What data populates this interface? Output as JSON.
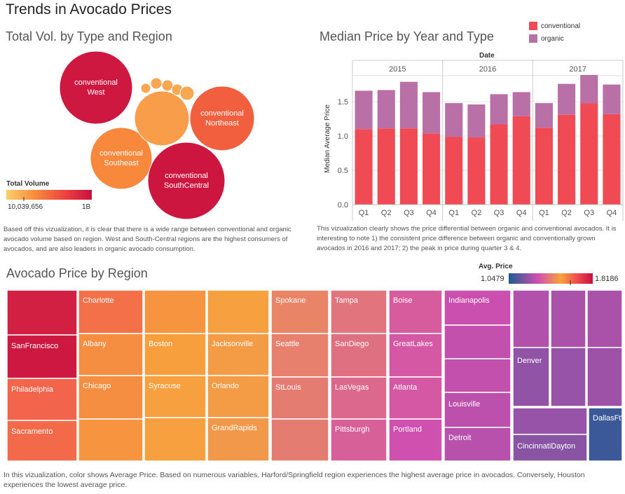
{
  "page": {
    "title": "Trends in Avocado Prices"
  },
  "bubbles": {
    "title": "Total Vol. by Type and Region",
    "legend_title": "Total Volume",
    "legend_min": "10,039,656",
    "legend_max": "1B",
    "colors": [
      "#fbd06a",
      "#f7883c",
      "#ec4040",
      "#c8103f"
    ],
    "note": "Based off this vizualization, it is clear that there is a wide range between conventional and organic avocado volume based on region. West and South-Central regions are the highest consumers of avocados, and are also leaders in organic avocado consumption."
  },
  "bars": {
    "title": "Median Price by Year and Type",
    "date_label": "Date",
    "y_axis_label": "Median Average Price",
    "legend": [
      {
        "name": "conventional",
        "color": "#f04a55"
      },
      {
        "name": "organic",
        "color": "#b870a6"
      }
    ],
    "note": "This vizualization clearly shows the price differential between organic and conventional avocados. It is interesting to note 1) the consistent price difference between organic and conventionally grown avocados in 2016 and 2017; 2) the peak in price during quarter 3 & 4."
  },
  "chart_data": [
    {
      "type": "scatter",
      "title": "Total Vol. by Type and Region",
      "points": [
        {
          "label": "conventional West",
          "color_level": 0.95
        },
        {
          "label": "conventional Northeast",
          "color_level": 0.55
        },
        {
          "label": "conventional Southeast",
          "color_level": 0.35
        },
        {
          "label": "conventional SouthCentral",
          "color_level": 0.96
        },
        {
          "label": "",
          "color_level": 0.25
        },
        {
          "label": "",
          "color_level": 0.2
        },
        {
          "label": "",
          "color_level": 0.2
        },
        {
          "label": "",
          "color_level": 0.2
        },
        {
          "label": "",
          "color_level": 0.2
        },
        {
          "label": "",
          "color_level": 0.2
        },
        {
          "label": "",
          "color_level": 0.2
        }
      ]
    },
    {
      "type": "bar",
      "title": "Median Price by Year and Type",
      "years": [
        "2015",
        "2016",
        "2017"
      ],
      "categories": [
        "Q1",
        "Q2",
        "Q3",
        "Q4",
        "Q1",
        "Q2",
        "Q3",
        "Q4",
        "Q1",
        "Q2",
        "Q3",
        "Q4"
      ],
      "ylabel": "Median Average Price",
      "ylim": [
        0,
        1.9
      ],
      "yticks": [
        "0.0",
        "0.5",
        "1.0",
        "1.5"
      ],
      "series": [
        {
          "name": "conventional",
          "values": [
            1.1,
            1.11,
            1.11,
            1.04,
            0.99,
            0.98,
            1.17,
            1.29,
            1.12,
            1.31,
            1.48,
            1.32
          ]
        },
        {
          "name": "organic",
          "values": [
            0.56,
            0.56,
            0.68,
            0.6,
            0.49,
            0.48,
            0.44,
            0.35,
            0.36,
            0.45,
            0.41,
            0.43
          ]
        }
      ]
    },
    {
      "type": "heatmap",
      "title": "Avocado Price by Region",
      "legend_title": "Avg. Price",
      "legend_min": "1.0479",
      "legend_max": "1.8186",
      "cells": [
        {
          "label": "",
          "price": 1.78
        },
        {
          "label": "SanFrancisco",
          "price": 1.8
        },
        {
          "label": "Philadelphia",
          "price": 1.63
        },
        {
          "label": "Sacramento",
          "price": 1.62
        },
        {
          "label": "Charlotte",
          "price": 1.61
        },
        {
          "label": "Albany",
          "price": 1.56
        },
        {
          "label": "Chicago",
          "price": 1.56
        },
        {
          "label": "",
          "price": 1.55
        },
        {
          "label": "",
          "price": 1.55
        },
        {
          "label": "Boston",
          "price": 1.53
        },
        {
          "label": "Syracuse",
          "price": 1.52
        },
        {
          "label": "",
          "price": 1.52
        },
        {
          "label": "",
          "price": 1.52
        },
        {
          "label": "Jacksonville",
          "price": 1.51
        },
        {
          "label": "Orlando",
          "price": 1.51
        },
        {
          "label": "GrandRapids",
          "price": 1.5
        },
        {
          "label": "Spokane",
          "price": 1.45
        },
        {
          "label": "Seattle",
          "price": 1.44
        },
        {
          "label": "StLouis",
          "price": 1.43
        },
        {
          "label": "",
          "price": 1.43
        },
        {
          "label": "Tampa",
          "price": 1.41
        },
        {
          "label": "SanDiego",
          "price": 1.4
        },
        {
          "label": "LasVegas",
          "price": 1.38
        },
        {
          "label": "Pittsburgh",
          "price": 1.36
        },
        {
          "label": "Boise",
          "price": 1.35
        },
        {
          "label": "GreatLakes",
          "price": 1.34
        },
        {
          "label": "Atlanta",
          "price": 1.34
        },
        {
          "label": "Portland",
          "price": 1.32
        },
        {
          "label": "Indianapolis",
          "price": 1.31
        },
        {
          "label": "",
          "price": 1.3
        },
        {
          "label": "",
          "price": 1.3
        },
        {
          "label": "Louisville",
          "price": 1.29
        },
        {
          "label": "Detroit",
          "price": 1.28
        },
        {
          "label": "",
          "price": 1.27
        },
        {
          "label": "",
          "price": 1.26
        },
        {
          "label": "",
          "price": 1.26
        },
        {
          "label": "Denver",
          "price": 1.22
        },
        {
          "label": "",
          "price": 1.23
        },
        {
          "label": "",
          "price": 1.24
        },
        {
          "label": "",
          "price": 1.23
        },
        {
          "label": "CincinnatiDayton",
          "price": 1.21
        },
        {
          "label": "DallasFtWorth",
          "price": 1.09
        },
        {
          "label": "",
          "price": 1.05
        }
      ]
    }
  ],
  "treemap": {
    "title": "Avocado Price by Region",
    "legend_title": "Avg. Price",
    "legend_min": "1.0479",
    "legend_max": "1.8186",
    "note": "In this vizualization, color shows Average Price. Based on numerous variables, Harford/Springfield region experiences the highest average price in avocados. Conversely, Houston experiences the lowest average price."
  }
}
